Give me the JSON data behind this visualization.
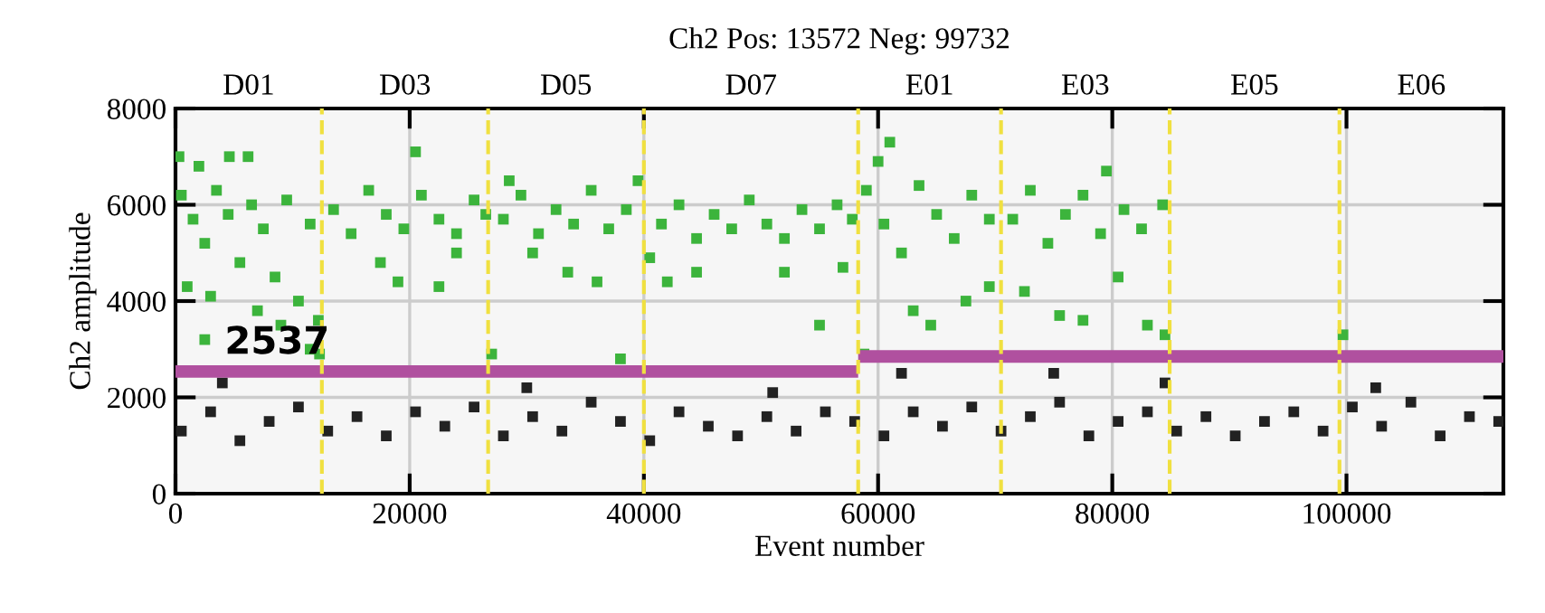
{
  "chart_data": {
    "type": "scatter",
    "title": "Ch2 Pos: 13572 Neg: 99732",
    "xlabel": "Event number",
    "ylabel": "Ch2 amplitude",
    "xlim": [
      0,
      113400
    ],
    "xticks": [
      0,
      20000,
      40000,
      60000,
      80000,
      100000
    ],
    "ylim": [
      0,
      8000
    ],
    "yticks": [
      0,
      2000,
      4000,
      6000,
      8000
    ],
    "grid": true,
    "series": [
      {
        "color": "#3cb43c",
        "marker": "square",
        "x": [
          500,
          1500,
          2500,
          3500,
          4500,
          5500,
          6500,
          7500,
          8500,
          9500,
          10500,
          11500,
          12200,
          300,
          2000,
          4600,
          6200,
          1000,
          2500,
          3000,
          7000,
          9000,
          11500,
          12300,
          13500,
          15000,
          16500,
          18000,
          19500,
          21000,
          22500,
          24000,
          25500,
          26500,
          20500,
          19000,
          22500,
          17500,
          24000,
          28000,
          29500,
          31000,
          32500,
          34000,
          35500,
          37000,
          38500,
          39500,
          28500,
          27000,
          33500,
          36000,
          38000,
          30500,
          41500,
          43000,
          44500,
          46000,
          47500,
          49000,
          50500,
          52000,
          53500,
          55000,
          56500,
          57800,
          42000,
          44500,
          52000,
          55000,
          57000,
          40500,
          59000,
          60500,
          62000,
          63500,
          65000,
          66500,
          68000,
          69500,
          61000,
          60000,
          63000,
          64500,
          67500,
          69500,
          58800,
          71500,
          73000,
          74500,
          76000,
          77500,
          79000,
          81000,
          82500,
          84300,
          79500,
          72500,
          75500,
          77500,
          80500,
          83000,
          84500,
          99700
        ],
        "values": [
          6200,
          5700,
          5200,
          6300,
          5800,
          4800,
          6000,
          5500,
          4500,
          6100,
          4000,
          5600,
          3600,
          7000,
          6800,
          7000,
          7000,
          4300,
          3200,
          4100,
          3800,
          3500,
          3000,
          2900,
          5900,
          5400,
          6300,
          5800,
          5500,
          6200,
          5700,
          5400,
          6100,
          5800,
          7100,
          4400,
          4300,
          4800,
          5000,
          5700,
          6200,
          5400,
          5900,
          5600,
          6300,
          5500,
          5900,
          6500,
          6500,
          2900,
          4600,
          4400,
          2800,
          5000,
          5600,
          6000,
          5300,
          5800,
          5500,
          6100,
          5600,
          5300,
          5900,
          5500,
          6000,
          5700,
          4400,
          4600,
          4600,
          3500,
          4700,
          4900,
          6300,
          5600,
          5000,
          6400,
          5800,
          5300,
          6200,
          5700,
          7300,
          6900,
          3800,
          3500,
          4000,
          4300,
          2900,
          5700,
          6300,
          5200,
          5800,
          6200,
          5400,
          5900,
          5500,
          6000,
          6700,
          4200,
          3700,
          3600,
          4500,
          3500,
          3300,
          3300
        ]
      },
      {
        "color": "#222222",
        "marker": "square",
        "x": [
          500,
          3000,
          5500,
          8000,
          10500,
          13000,
          15500,
          18000,
          20500,
          23000,
          25500,
          28000,
          30500,
          33000,
          35500,
          38000,
          40500,
          43000,
          45500,
          48000,
          50500,
          53000,
          55500,
          58000,
          60500,
          63000,
          65500,
          68000,
          70500,
          73000,
          75500,
          78000,
          80500,
          83000,
          85500,
          88000,
          90500,
          93000,
          95500,
          98000,
          100500,
          103000,
          105500,
          108000,
          110500,
          113000,
          4000,
          30000,
          51000,
          62000,
          75000,
          84500,
          102500
        ],
        "values": [
          1300,
          1700,
          1100,
          1500,
          1800,
          1300,
          1600,
          1200,
          1700,
          1400,
          1800,
          1200,
          1600,
          1300,
          1900,
          1500,
          1100,
          1700,
          1400,
          1200,
          1600,
          1300,
          1700,
          1500,
          1200,
          1700,
          1400,
          1800,
          1300,
          1600,
          1900,
          1200,
          1500,
          1700,
          1300,
          1600,
          1200,
          1500,
          1700,
          1300,
          1800,
          1400,
          1900,
          1200,
          1600,
          1500,
          2300,
          2200,
          2100,
          2500,
          2500,
          2300,
          2200
        ]
      },
      {
        "type": "line",
        "color": "#b0509f",
        "x": [
          0,
          58300
        ],
        "values": [
          2537,
          2537
        ]
      },
      {
        "type": "line",
        "color": "#b0509f",
        "x": [
          58300,
          113400
        ],
        "values": [
          2850,
          2850
        ]
      }
    ],
    "ref_lines": [
      {
        "axis": "x",
        "value": 12500,
        "color": "#f0e040",
        "line_style": "dashed"
      },
      {
        "axis": "x",
        "value": 26700,
        "color": "#f0e040",
        "line_style": "dashed"
      },
      {
        "axis": "x",
        "value": 40000,
        "color": "#f0e040",
        "line_style": "dashed"
      },
      {
        "axis": "x",
        "value": 58300,
        "color": "#f0e040",
        "line_style": "dashed"
      },
      {
        "axis": "x",
        "value": 70500,
        "color": "#f0e040",
        "line_style": "dashed"
      },
      {
        "axis": "x",
        "value": 84900,
        "color": "#f0e040",
        "line_style": "dashed"
      },
      {
        "axis": "x",
        "value": 99400,
        "color": "#f0e040",
        "line_style": "dashed"
      }
    ],
    "annotations": [
      {
        "text": "2537",
        "x": 4200,
        "y": 2537
      },
      "D01",
      "D03",
      "D05",
      "D07",
      "E01",
      "E03",
      "E05",
      "E06"
    ]
  }
}
